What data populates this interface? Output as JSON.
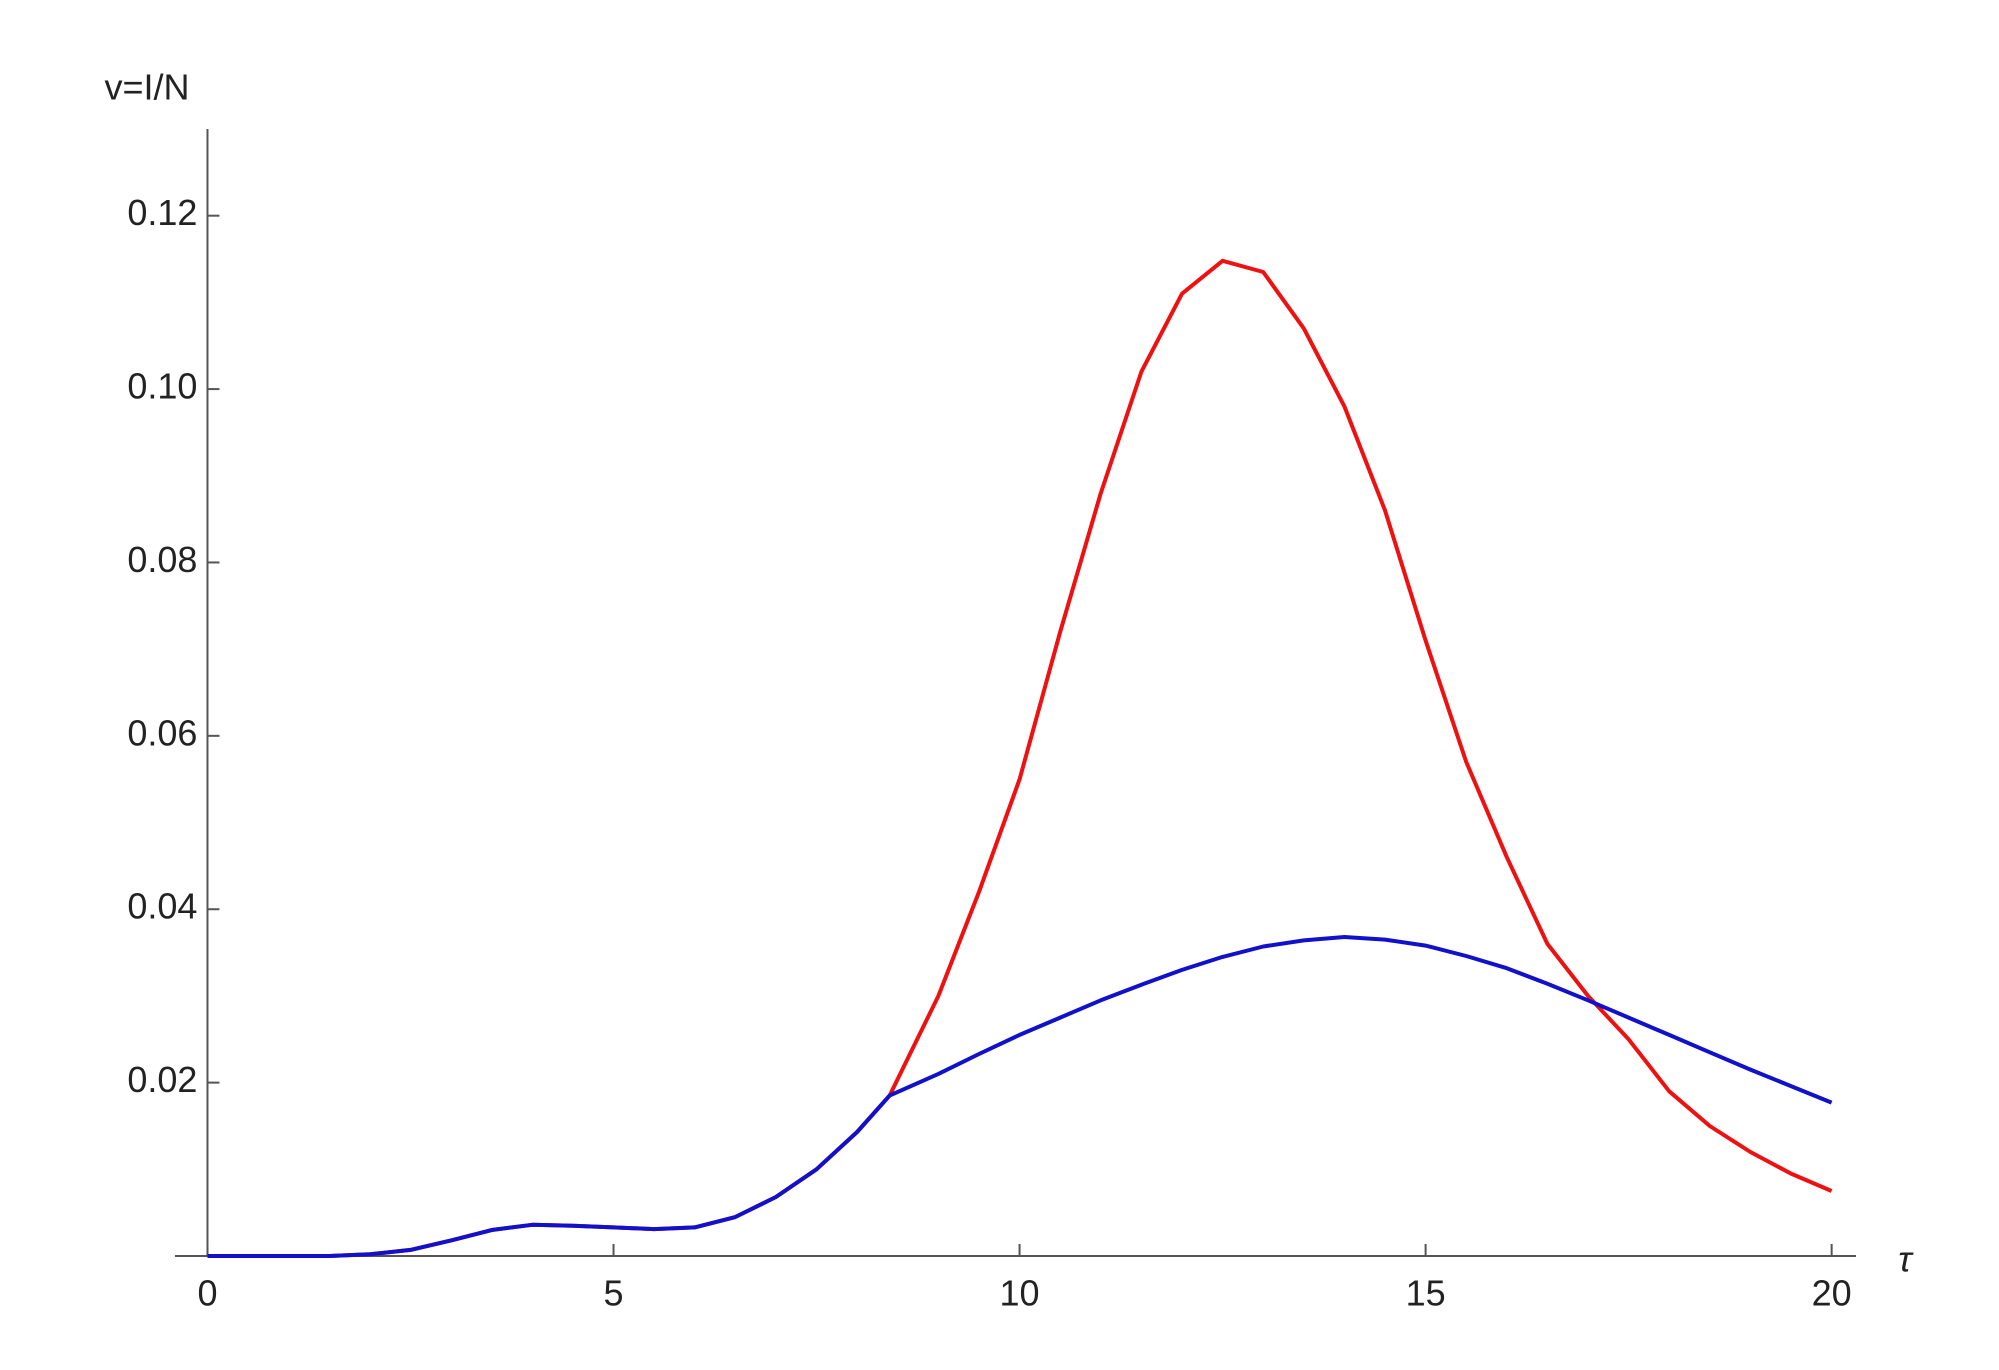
{
  "chart_data": {
    "type": "line",
    "x_label": "τ",
    "y_label": "v=I/N",
    "x": [
      0,
      0.5,
      1,
      1.5,
      2,
      2.5,
      3,
      3.5,
      4,
      4.5,
      5,
      5.5,
      6,
      6.5,
      7,
      7.5,
      8,
      8.4,
      9,
      9.5,
      10,
      10.5,
      11,
      11.5,
      12,
      12.5,
      13,
      13.5,
      14,
      14.5,
      15,
      15.5,
      16,
      16.5,
      17,
      17.5,
      18,
      18.5,
      19,
      19.5,
      20
    ],
    "series": [
      {
        "color": "#ee1111",
        "values": [
          0,
          0,
          0,
          0,
          0.0002,
          0.0007,
          0.0018,
          0.003,
          0.0036,
          0.0035,
          0.0033,
          0.0031,
          0.0033,
          0.0045,
          0.0068,
          0.01,
          0.0143,
          0.0185,
          0.03,
          0.042,
          0.055,
          0.072,
          0.088,
          0.102,
          0.111,
          0.1148,
          0.1135,
          0.107,
          0.098,
          0.086,
          0.071,
          0.057,
          0.046,
          0.036,
          0.03,
          0.025,
          0.019,
          0.015,
          0.012,
          0.0095,
          0.0075
        ]
      },
      {
        "color": "#1111cc",
        "values": [
          0,
          0,
          0,
          0,
          0.0002,
          0.0007,
          0.0018,
          0.003,
          0.0036,
          0.0035,
          0.0033,
          0.0031,
          0.0033,
          0.0045,
          0.0068,
          0.01,
          0.0143,
          0.0185,
          0.021,
          0.0233,
          0.0255,
          0.0275,
          0.0295,
          0.0313,
          0.033,
          0.0345,
          0.0357,
          0.0364,
          0.0368,
          0.0365,
          0.0358,
          0.0346,
          0.0332,
          0.0314,
          0.0295,
          0.0275,
          0.0255,
          0.0235,
          0.0215,
          0.0196,
          0.0177
        ]
      }
    ],
    "xlim": [
      -0.4,
      20.3
    ],
    "ylim": [
      0,
      0.13
    ],
    "xticks": [
      0,
      5,
      10,
      15,
      20
    ],
    "yticks": [
      0.02,
      0.04,
      0.06,
      0.08,
      {
        "value": 0.1,
        "label": "0.10"
      },
      0.12
    ]
  }
}
